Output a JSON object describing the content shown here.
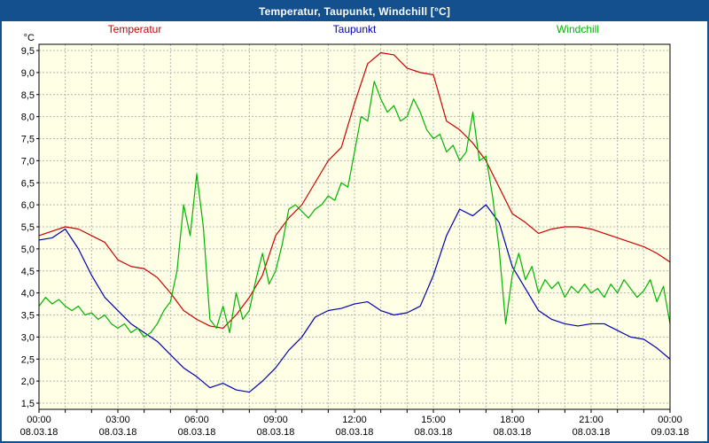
{
  "title": "Temperatur, Taupunkt, Windchill [°C]",
  "theme": {
    "title_bar_bg": "#14508e",
    "title_text": "#ffffff",
    "window_border": "#14508e",
    "plot_background": "#ffffe6",
    "grid": "#b4b4b4",
    "frame": "#000000",
    "axis_text": "#000000"
  },
  "chart_data": {
    "type": "line",
    "title": "Temperatur, Taupunkt, Windchill [°C]",
    "legend_position": "top",
    "grid": "dashed",
    "x_axis": {
      "min": 0,
      "max": 24,
      "grid_step_hours": 1,
      "ticks": [
        {
          "hour": 0,
          "time": "00:00",
          "date": "08.03.18"
        },
        {
          "hour": 3,
          "time": "03:00",
          "date": "08.03.18"
        },
        {
          "hour": 6,
          "time": "06:00",
          "date": "08.03.18"
        },
        {
          "hour": 9,
          "time": "09:00",
          "date": "08.03.18"
        },
        {
          "hour": 12,
          "time": "12:00",
          "date": "08.03.18"
        },
        {
          "hour": 15,
          "time": "15:00",
          "date": "08.03.18"
        },
        {
          "hour": 18,
          "time": "18:00",
          "date": "08.03.18"
        },
        {
          "hour": 21,
          "time": "21:00",
          "date": "08.03.18"
        },
        {
          "hour": 24,
          "time": "00:00",
          "date": "09.03.18"
        }
      ]
    },
    "y_axis": {
      "unit": "°C",
      "min": 1.5,
      "max": 9.5,
      "step": 0.5,
      "ticks": [
        {
          "value": 1.5,
          "label": "1,5"
        },
        {
          "value": 2.0,
          "label": "2,0"
        },
        {
          "value": 2.5,
          "label": "2,5"
        },
        {
          "value": 3.0,
          "label": "3,0"
        },
        {
          "value": 3.5,
          "label": "3,5"
        },
        {
          "value": 4.0,
          "label": "4,0"
        },
        {
          "value": 4.5,
          "label": "4,5"
        },
        {
          "value": 5.0,
          "label": "5,0"
        },
        {
          "value": 5.5,
          "label": "5,5"
        },
        {
          "value": 6.0,
          "label": "6,0"
        },
        {
          "value": 6.5,
          "label": "6,5"
        },
        {
          "value": 7.0,
          "label": "7,0"
        },
        {
          "value": 7.5,
          "label": "7,5"
        },
        {
          "value": 8.0,
          "label": "8,0"
        },
        {
          "value": 8.5,
          "label": "8,5"
        },
        {
          "value": 9.0,
          "label": "9,0"
        },
        {
          "value": 9.5,
          "label": "9,5"
        }
      ]
    },
    "series": [
      {
        "name": "Temperatur",
        "color": "#cc0000",
        "start_hour": 0,
        "step_hours": 0.5,
        "values": [
          5.3,
          5.4,
          5.5,
          5.45,
          5.3,
          5.15,
          4.75,
          4.6,
          4.55,
          4.35,
          4.0,
          3.6,
          3.4,
          3.25,
          3.2,
          3.5,
          3.9,
          4.4,
          5.3,
          5.7,
          6.0,
          6.5,
          7.0,
          7.3,
          8.3,
          9.2,
          9.45,
          9.4,
          9.1,
          9.0,
          8.95,
          7.9,
          7.7,
          7.4,
          7.0,
          6.4,
          5.8,
          5.6,
          5.35,
          5.45,
          5.5,
          5.5,
          5.45,
          5.35,
          5.25,
          5.15,
          5.05,
          4.9,
          4.7
        ]
      },
      {
        "name": "Taupunkt",
        "color": "#0000b0",
        "start_hour": 0,
        "step_hours": 0.5,
        "values": [
          5.2,
          5.25,
          5.45,
          5.0,
          4.4,
          3.9,
          3.6,
          3.3,
          3.1,
          2.9,
          2.6,
          2.3,
          2.1,
          1.85,
          1.95,
          1.8,
          1.75,
          2.0,
          2.3,
          2.7,
          3.0,
          3.45,
          3.6,
          3.65,
          3.75,
          3.8,
          3.6,
          3.5,
          3.55,
          3.7,
          4.4,
          5.3,
          5.9,
          5.75,
          6.0,
          5.6,
          4.6,
          4.1,
          3.6,
          3.4,
          3.3,
          3.25,
          3.3,
          3.3,
          3.15,
          3.0,
          2.95,
          2.75,
          2.5
        ]
      },
      {
        "name": "Windchill",
        "color": "#00b400",
        "start_hour": 0,
        "step_hours": 0.25,
        "values": [
          3.7,
          3.9,
          3.75,
          3.85,
          3.7,
          3.6,
          3.7,
          3.5,
          3.55,
          3.4,
          3.5,
          3.3,
          3.2,
          3.3,
          3.1,
          3.2,
          3.0,
          3.1,
          3.3,
          3.6,
          3.8,
          4.5,
          6.0,
          5.3,
          6.7,
          5.5,
          3.4,
          3.2,
          3.7,
          3.1,
          4.0,
          3.4,
          3.6,
          4.3,
          4.9,
          4.2,
          4.5,
          5.1,
          5.9,
          6.0,
          5.85,
          5.7,
          5.9,
          6.0,
          6.2,
          6.1,
          6.5,
          6.4,
          7.2,
          8.0,
          7.9,
          8.8,
          8.4,
          8.1,
          8.25,
          7.9,
          8.0,
          8.4,
          8.1,
          7.7,
          7.5,
          7.6,
          7.2,
          7.35,
          7.0,
          7.2,
          8.1,
          7.0,
          7.1,
          6.2,
          5.0,
          3.3,
          4.4,
          4.9,
          4.3,
          4.6,
          4.0,
          4.3,
          4.1,
          4.25,
          3.9,
          4.15,
          4.0,
          4.2,
          4.0,
          4.1,
          3.9,
          4.2,
          4.0,
          4.3,
          4.1,
          3.9,
          4.05,
          4.3,
          3.8,
          4.15,
          3.3
        ]
      }
    ]
  }
}
